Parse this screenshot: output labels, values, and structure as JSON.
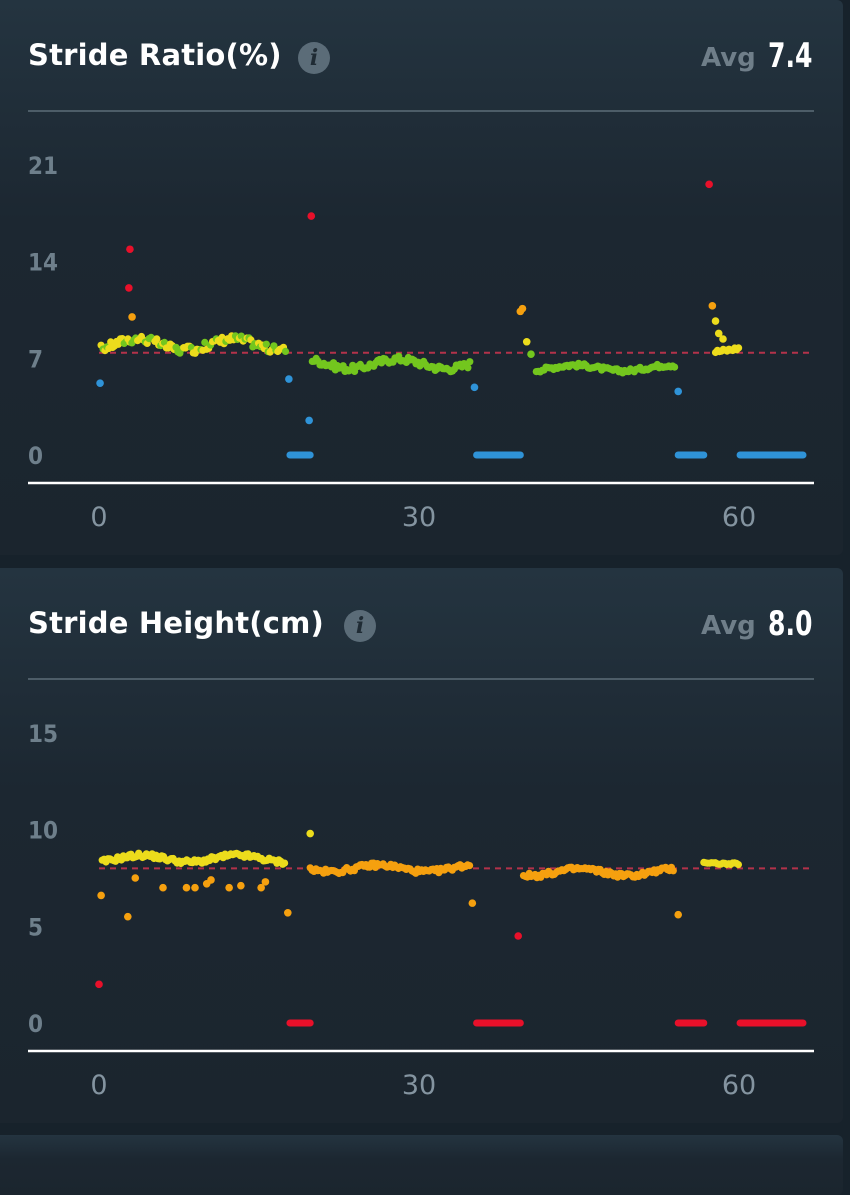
{
  "colors": {
    "red": "#e8102a",
    "orange": "#f5a00f",
    "yellow": "#ecdc1c",
    "green": "#73c61e",
    "blue": "#2f93d8",
    "avg_line": "#b3324a",
    "axis": "#ffffff"
  },
  "panels": [
    {
      "title": "Stride Ratio(%)",
      "avg_label": "Avg",
      "avg_value": "7.4",
      "info_icon": "info-icon"
    },
    {
      "title": "Stride Height(cm)",
      "avg_label": "Avg",
      "avg_value": "8.0",
      "info_icon": "info-icon"
    }
  ],
  "chart_data": [
    {
      "type": "scatter",
      "title": "Stride Ratio(%)",
      "xlim": [
        0,
        66
      ],
      "ylim": [
        0,
        21
      ],
      "xticks": [
        "0",
        "30",
        "60"
      ],
      "yticks": [
        "0",
        "7",
        "14",
        "21"
      ],
      "avg_line": 7.4,
      "segments": [
        {
          "id": "s1",
          "x_start": 0.2,
          "x_end": 17.5,
          "base": 8.0,
          "amp": 0.6,
          "color_rule": "mixed"
        },
        {
          "id": "s2",
          "x_start": 20.0,
          "x_end": 34.8,
          "base": 6.6,
          "amp": 0.5,
          "color_rule": "green"
        },
        {
          "id": "s3",
          "x_start": 41.0,
          "x_end": 54.0,
          "base": 6.3,
          "amp": 0.3,
          "color_rule": "green"
        },
        {
          "id": "s4",
          "x_start": 57.8,
          "x_end": 60.0,
          "base": 7.7,
          "amp": 0.3,
          "color_rule": "yellow"
        }
      ],
      "outliers": [
        {
          "x": 0.1,
          "y": 5.2,
          "color": "blue"
        },
        {
          "x": 2.9,
          "y": 14.9,
          "color": "red"
        },
        {
          "x": 2.8,
          "y": 12.1,
          "color": "red"
        },
        {
          "x": 3.1,
          "y": 10.0,
          "color": "orange"
        },
        {
          "x": 17.8,
          "y": 5.5,
          "color": "blue"
        },
        {
          "x": 19.7,
          "y": 2.5,
          "color": "blue"
        },
        {
          "x": 19.9,
          "y": 17.3,
          "color": "red"
        },
        {
          "x": 35.2,
          "y": 4.9,
          "color": "blue"
        },
        {
          "x": 39.5,
          "y": 10.4,
          "color": "orange"
        },
        {
          "x": 39.7,
          "y": 10.6,
          "color": "orange"
        },
        {
          "x": 40.1,
          "y": 8.2,
          "color": "yellow"
        },
        {
          "x": 40.5,
          "y": 7.3,
          "color": "green"
        },
        {
          "x": 54.3,
          "y": 4.6,
          "color": "blue"
        },
        {
          "x": 57.2,
          "y": 19.6,
          "color": "red"
        },
        {
          "x": 57.5,
          "y": 10.8,
          "color": "orange"
        },
        {
          "x": 57.8,
          "y": 9.7,
          "color": "yellow"
        },
        {
          "x": 58.1,
          "y": 8.8,
          "color": "yellow"
        },
        {
          "x": 58.5,
          "y": 8.4,
          "color": "yellow"
        }
      ],
      "zero_bars": [
        [
          17.9,
          19.8
        ],
        [
          35.4,
          39.5
        ],
        [
          54.3,
          56.7
        ],
        [
          60.1,
          66.0
        ]
      ],
      "zero_bar_color": "blue"
    },
    {
      "type": "scatter",
      "title": "Stride Height(cm)",
      "xlim": [
        0,
        66
      ],
      "ylim": [
        0,
        15
      ],
      "xticks": [
        "0",
        "30",
        "60"
      ],
      "yticks": [
        "0",
        "5",
        "10",
        "15"
      ],
      "avg_line": 8.0,
      "segments": [
        {
          "id": "h1",
          "x_start": 0.3,
          "x_end": 17.5,
          "base": 8.5,
          "amp": 0.25,
          "color_rule": "yellow"
        },
        {
          "id": "h2",
          "x_start": 19.8,
          "x_end": 34.8,
          "base": 8.0,
          "amp": 0.25,
          "color_rule": "orange"
        },
        {
          "id": "h3",
          "x_start": 39.8,
          "x_end": 54.0,
          "base": 7.8,
          "amp": 0.25,
          "color_rule": "orange"
        },
        {
          "id": "h4",
          "x_start": 56.7,
          "x_end": 60.0,
          "base": 8.3,
          "amp": 0.1,
          "color_rule": "yellow"
        }
      ],
      "outliers": [
        {
          "x": 0.0,
          "y": 2.0,
          "color": "red"
        },
        {
          "x": 0.2,
          "y": 6.6,
          "color": "orange"
        },
        {
          "x": 2.7,
          "y": 5.5,
          "color": "orange"
        },
        {
          "x": 3.4,
          "y": 7.5,
          "color": "orange"
        },
        {
          "x": 6.0,
          "y": 7.0,
          "color": "orange"
        },
        {
          "x": 8.2,
          "y": 7.0,
          "color": "orange"
        },
        {
          "x": 9.0,
          "y": 7.0,
          "color": "orange"
        },
        {
          "x": 10.1,
          "y": 7.2,
          "color": "orange"
        },
        {
          "x": 10.5,
          "y": 7.4,
          "color": "orange"
        },
        {
          "x": 12.2,
          "y": 7.0,
          "color": "orange"
        },
        {
          "x": 13.3,
          "y": 7.1,
          "color": "orange"
        },
        {
          "x": 15.2,
          "y": 7.0,
          "color": "orange"
        },
        {
          "x": 15.6,
          "y": 7.3,
          "color": "orange"
        },
        {
          "x": 17.7,
          "y": 5.7,
          "color": "orange"
        },
        {
          "x": 19.8,
          "y": 9.8,
          "color": "yellow"
        },
        {
          "x": 35.0,
          "y": 6.2,
          "color": "orange"
        },
        {
          "x": 39.3,
          "y": 4.5,
          "color": "red"
        },
        {
          "x": 54.3,
          "y": 5.6,
          "color": "orange"
        }
      ],
      "zero_bars": [
        [
          17.9,
          19.8
        ],
        [
          35.4,
          39.5
        ],
        [
          54.3,
          56.7
        ],
        [
          60.1,
          66.0
        ]
      ],
      "zero_bar_color": "red"
    }
  ]
}
